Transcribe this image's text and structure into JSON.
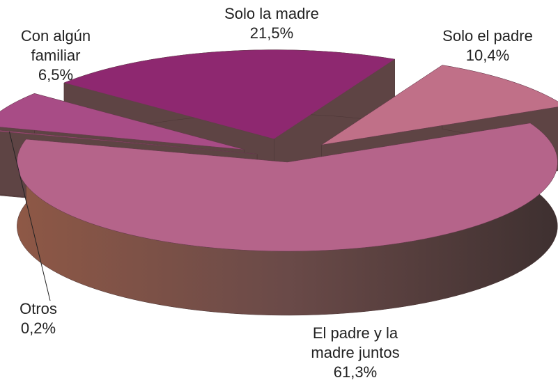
{
  "chart_data": {
    "type": "pie3d",
    "categories": [
      "El padre y la madre juntos",
      "Otros",
      "Con algún familiar",
      "Solo la madre",
      "Solo el padre"
    ],
    "values": [
      61.3,
      0.2,
      6.5,
      21.5,
      10.4
    ],
    "value_labels": [
      "61,3%",
      "0,2%",
      "6,5%",
      "21,5%",
      "10,4%"
    ],
    "colors": [
      "#b5648a",
      "#9a4a70",
      "#a84c86",
      "#8e2870",
      "#c07088"
    ]
  }
}
